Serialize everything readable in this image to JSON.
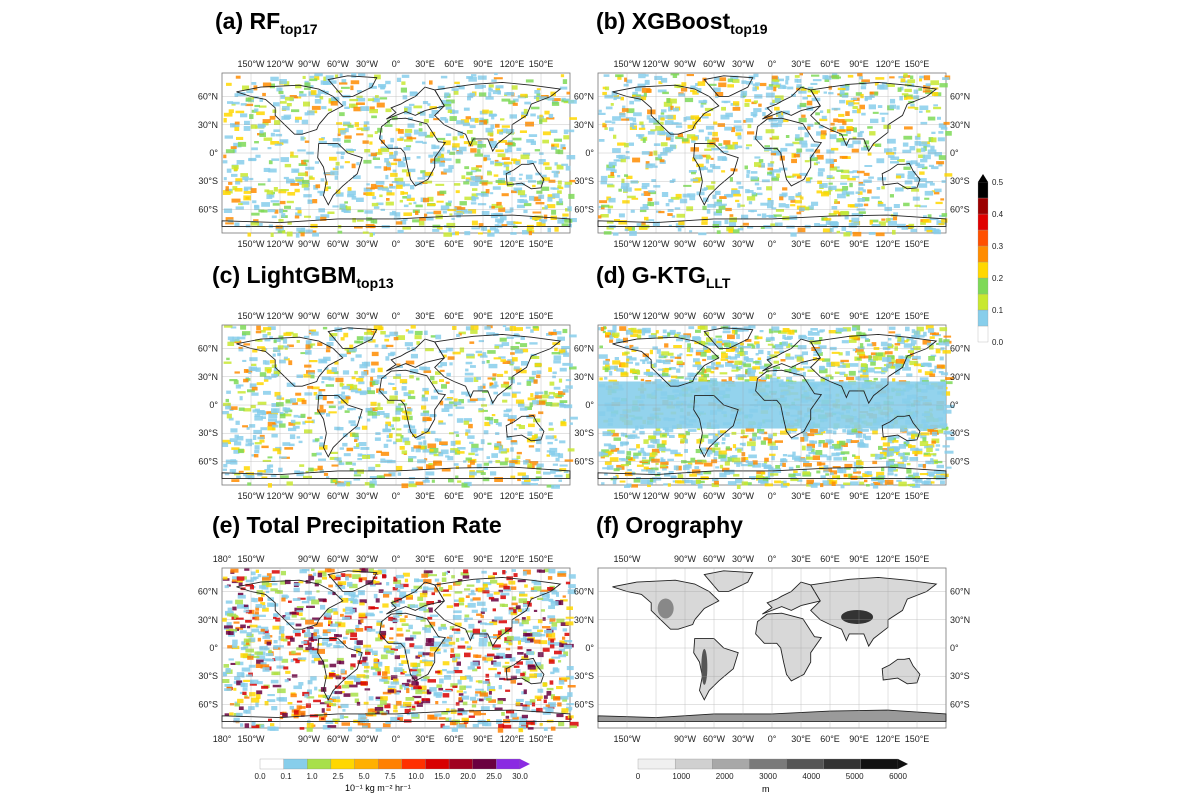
{
  "panels": [
    {
      "key": "a",
      "title_prefix": "(a) RF",
      "title_sub": "top17",
      "top_ticks": [
        "150°W",
        "120°W",
        "90°W",
        "60°W",
        "30°W",
        "0°",
        "30°E",
        "60°E",
        "90°E",
        "120°E",
        "150°E"
      ],
      "bottom_ticks": [
        "150°W",
        "120°W",
        "90°W",
        "60°W",
        "30°W",
        "0°",
        "30°E",
        "60°E",
        "90°E",
        "120°E",
        "150°E"
      ],
      "lat_ticks": [
        "60°N",
        "30°N",
        "0°",
        "30°S",
        "60°S"
      ],
      "lat_side": "left",
      "scheme": "contrib",
      "level": 0.35
    },
    {
      "key": "b",
      "title_prefix": "(b) XGBoost",
      "title_sub": "top19",
      "top_ticks": [
        "150°W",
        "120°W",
        "90°W",
        "60°W",
        "30°W",
        "0°",
        "30°E",
        "60°E",
        "90°E",
        "120°E",
        "150°E"
      ],
      "bottom_ticks": [
        "150°W",
        "120°W",
        "90°W",
        "60°W",
        "30°W",
        "0°",
        "30°E",
        "60°E",
        "90°E",
        "120°E",
        "150°E"
      ],
      "lat_ticks": [
        "60°N",
        "30°N",
        "0°",
        "30°S",
        "60°S"
      ],
      "lat_side": "both",
      "scheme": "contrib",
      "level": 0.35
    },
    {
      "key": "c",
      "title_prefix": "(c) LightGBM",
      "title_sub": "top13",
      "top_ticks": [
        "150°W",
        "120°W",
        "90°W",
        "60°W",
        "30°W",
        "0°",
        "30°E",
        "60°E",
        "90°E",
        "120°E",
        "150°E"
      ],
      "bottom_ticks": [
        "150°W",
        "120°W",
        "90°W",
        "60°W",
        "30°W",
        "0°",
        "30°E",
        "60°E",
        "90°E",
        "120°E",
        "150°E"
      ],
      "lat_ticks": [
        "60°N",
        "30°N",
        "0°",
        "30°S",
        "60°S"
      ],
      "lat_side": "left",
      "scheme": "contrib",
      "level": 0.35
    },
    {
      "key": "d",
      "title_prefix": "(d) G-KTG",
      "title_sub": "LLT",
      "top_ticks": [
        "150°W",
        "120°W",
        "90°W",
        "60°W",
        "30°W",
        "0°",
        "30°E",
        "60°E",
        "90°E",
        "120°E",
        "150°E"
      ],
      "bottom_ticks": [
        "150°W",
        "120°W",
        "90°W",
        "60°W",
        "30°W",
        "0°",
        "30°E",
        "60°E",
        "90°E",
        "120°E",
        "150°E"
      ],
      "lat_ticks": [
        "60°N",
        "30°N",
        "0°",
        "30°S",
        "60°S"
      ],
      "lat_side": "both",
      "scheme": "contrib",
      "level": 0.8
    },
    {
      "key": "e",
      "title_prefix": "(e) Total Precipitation Rate",
      "title_sub": "",
      "top_ticks": [
        "180°",
        "150°W",
        "",
        "90°W",
        "60°W",
        "30°W",
        "0°",
        "30°E",
        "60°E",
        "90°E",
        "120°E",
        "150°E"
      ],
      "bottom_ticks": [
        "180°",
        "150°W",
        "",
        "90°W",
        "60°W",
        "30°W",
        "0°",
        "30°E",
        "60°E",
        "90°E",
        "120°E",
        "150°E"
      ],
      "lat_ticks": [
        "60°N",
        "30°N",
        "0°",
        "30°S",
        "60°S"
      ],
      "lat_side": "left",
      "scheme": "precip",
      "level": 0.6
    },
    {
      "key": "f",
      "title_prefix": "(f) Orography",
      "title_sub": "",
      "top_ticks": [
        "150°W",
        "",
        "90°W",
        "60°W",
        "30°W",
        "0°",
        "30°E",
        "60°E",
        "90°E",
        "120°E",
        "150°E"
      ],
      "bottom_ticks": [
        "150°W",
        "",
        "90°W",
        "60°W",
        "30°W",
        "0°",
        "30°E",
        "60°E",
        "90°E",
        "120°E",
        "150°E"
      ],
      "lat_ticks": [
        "60°N",
        "30°N",
        "0°",
        "30°S",
        "60°S"
      ],
      "lat_side": "both",
      "scheme": "oro",
      "level": 0.5
    }
  ],
  "colorbars": {
    "contrib": {
      "labels": [
        "0.5",
        "0.4",
        "0.3",
        "0.2",
        "0.1",
        "0.0"
      ],
      "colors": [
        "#ffffff",
        "#87ceeb",
        "#c8e830",
        "#7ed957",
        "#ffd700",
        "#ff8c00",
        "#ff5000",
        "#e00000",
        "#9b0000",
        "#000000"
      ]
    },
    "precip": {
      "labels": [
        "0.0",
        "0.1",
        "1.0",
        "2.5",
        "5.0",
        "7.5",
        "10.0",
        "15.0",
        "20.0",
        "25.0",
        "30.0"
      ],
      "colors": [
        "#ffffff",
        "#87ceeb",
        "#a8e04a",
        "#ffd700",
        "#ffb000",
        "#ff8000",
        "#ff3000",
        "#d80000",
        "#a00020",
        "#6a0040",
        "#8a2be2"
      ],
      "unit": "10⁻¹ kg m⁻² hr⁻¹"
    },
    "oro": {
      "labels": [
        "0",
        "1000",
        "2000",
        "3000",
        "4000",
        "5000",
        "6000"
      ],
      "colors": [
        "#f0f0f0",
        "#d0d0d0",
        "#a8a8a8",
        "#7a7a7a",
        "#555555",
        "#333333",
        "#111111"
      ],
      "unit": "m"
    }
  }
}
